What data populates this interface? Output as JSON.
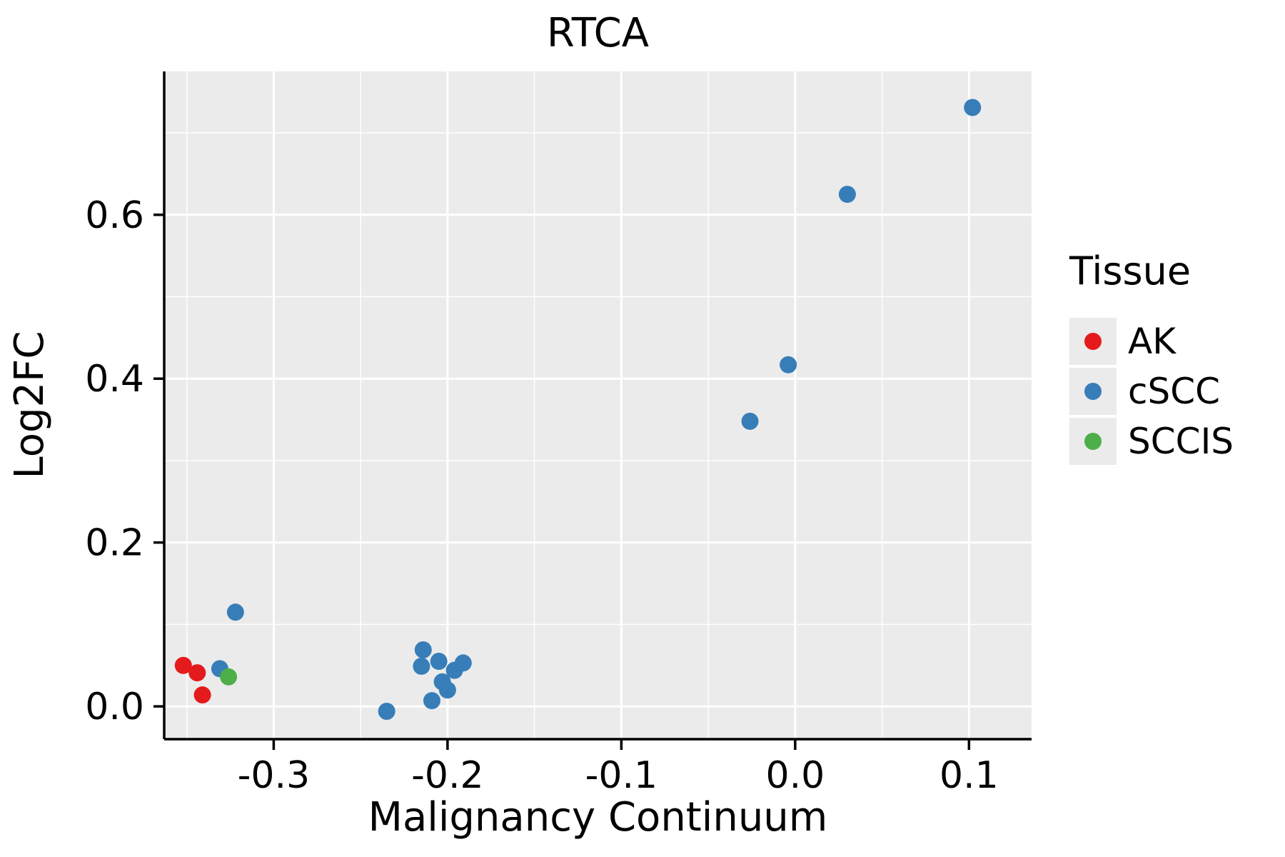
{
  "chart_data": {
    "type": "scatter",
    "title": "RTCA",
    "xlabel": "Malignancy Continuum",
    "ylabel": "Log2FC",
    "xlim": [
      -0.363,
      0.136
    ],
    "ylim": [
      -0.04,
      0.775
    ],
    "x_ticks": [
      -0.3,
      -0.2,
      -0.1,
      0.0,
      0.1
    ],
    "x_tick_labels": [
      "-0.3",
      "-0.2",
      "-0.1",
      "0.0",
      "0.1"
    ],
    "y_ticks": [
      0.0,
      0.2,
      0.4,
      0.6
    ],
    "y_tick_labels": [
      "0.0",
      "0.2",
      "0.4",
      "0.6"
    ],
    "x_minor_ticks": [
      -0.35,
      -0.25,
      -0.15,
      -0.05,
      0.05
    ],
    "y_minor_ticks": [
      0.1,
      0.3,
      0.5,
      0.7
    ],
    "grid": true,
    "panel_bg": "#EBEBEB",
    "grid_color": "#FFFFFF",
    "axis_color": "#000000",
    "legend_title": "Tissue",
    "legend_position": "right",
    "series": [
      {
        "name": "AK",
        "color": "#E41A1C",
        "points": [
          [
            -0.352,
            0.05
          ],
          [
            -0.344,
            0.041
          ],
          [
            -0.341,
            0.014
          ]
        ]
      },
      {
        "name": "cSCC",
        "color": "#377EB8",
        "points": [
          [
            -0.331,
            0.046
          ],
          [
            -0.322,
            0.115
          ],
          [
            -0.235,
            -0.006
          ],
          [
            -0.214,
            0.069
          ],
          [
            -0.215,
            0.049
          ],
          [
            -0.209,
            0.007
          ],
          [
            -0.205,
            0.055
          ],
          [
            -0.203,
            0.03
          ],
          [
            -0.2,
            0.02
          ],
          [
            -0.196,
            0.044
          ],
          [
            -0.191,
            0.053
          ],
          [
            -0.026,
            0.348
          ],
          [
            -0.004,
            0.417
          ],
          [
            0.03,
            0.625
          ],
          [
            0.102,
            0.731
          ]
        ]
      },
      {
        "name": "SCCIS",
        "color": "#4DAF4A",
        "points": [
          [
            -0.326,
            0.036
          ]
        ]
      }
    ]
  }
}
